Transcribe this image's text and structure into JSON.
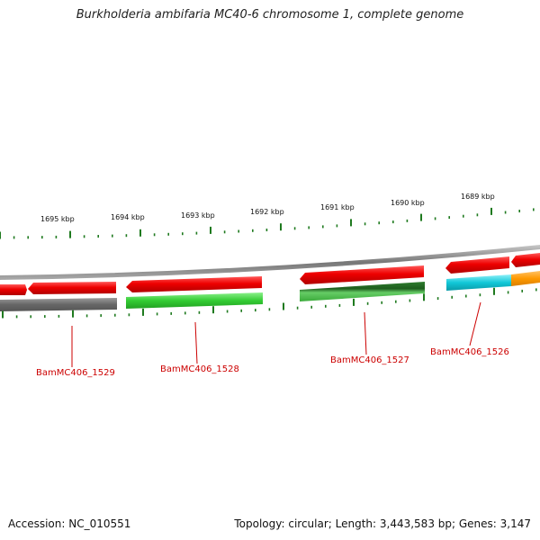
{
  "title": "Burkholderia ambifaria MC40-6 chromosome 1, complete genome",
  "kbp_ticks": [
    "1695 kbp",
    "1694 kbp",
    "1693 kbp",
    "1692 kbp",
    "1691 kbp",
    "1690 kbp",
    "1689 kbp"
  ],
  "genes": [
    {
      "label": "BamMC406_1529"
    },
    {
      "label": "BamMC406_1528"
    },
    {
      "label": "BamMC406_1527"
    },
    {
      "label": "BamMC406_1526"
    }
  ],
  "colors": {
    "backbone": "#8a8a8a",
    "tick": "#1f7a1f",
    "red": "#ee0000",
    "grey": "#666666",
    "light_green": "#33cc33",
    "dark_green": "#2e7d2e",
    "cyan": "#11c8d8",
    "orange": "#ff9900",
    "label": "#cc0000"
  },
  "footer": {
    "accession": "Accession: NC_010551",
    "info": "Topology: circular; Length: 3,443,583 bp; Genes: 3,147"
  }
}
